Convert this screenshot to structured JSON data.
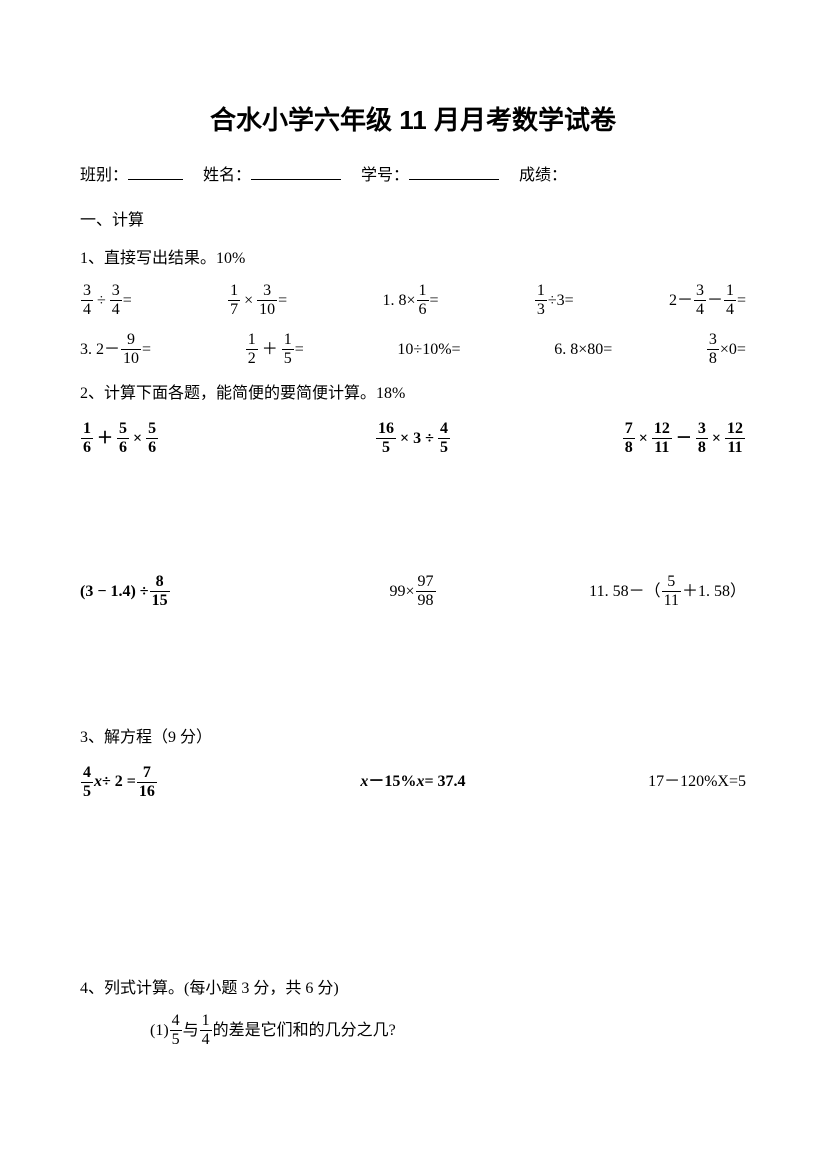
{
  "title": "合水小学六年级 11 月月考数学试卷",
  "info": {
    "class_label": "班别：",
    "name_label": "姓名：",
    "id_label": "学号：",
    "score_label": "成绩："
  },
  "sections": {
    "s1": "一、计算",
    "q1": "1、直接写出结果。10%",
    "q2": "2、计算下面各题，能简便的要简便计算。18%",
    "q3": "3、解方程（9 分）",
    "q4": "4、列式计算。(每小题 3 分，共 6 分)",
    "q4_1_prefix": "(1) ",
    "q4_1_mid": " 与 ",
    "q4_1_suffix": " 的差是它们和的几分之几?"
  },
  "row1": {
    "a_n1": "3",
    "a_d1": "4",
    "a_op": "÷",
    "a_n2": "3",
    "a_d2": "4",
    "a_eq": "=",
    "b_n1": "1",
    "b_d1": "7",
    "b_op": "×",
    "b_n2": "3",
    "b_d2": "10",
    "b_eq": "=",
    "c_pre": "1. 8×",
    "c_n": "1",
    "c_d": "6",
    "c_eq": "=",
    "d_n": "1",
    "d_d": "3",
    "d_op": "÷3=",
    "e_pre": "2－",
    "e_n1": "3",
    "e_d1": "4",
    "e_mid": "－",
    "e_n2": "1",
    "e_d2": "4",
    "e_eq": "="
  },
  "row2": {
    "a_pre": "3. 2－",
    "a_n": "9",
    "a_d": "10",
    "a_eq": "=",
    "b_n1": "1",
    "b_d1": "2",
    "b_op": "＋",
    "b_n2": "1",
    "b_d2": "5",
    "b_eq": "=",
    "c": "10÷10%=",
    "d": "6. 8×80=",
    "e_n": "3",
    "e_d": "8",
    "e_post": "×0="
  },
  "row3": {
    "a_n1": "1",
    "a_d1": "6",
    "a_op1": "＋",
    "a_n2": "5",
    "a_d2": "6",
    "a_op2": "×",
    "a_n3": "5",
    "a_d3": "6",
    "b_n1": "16",
    "b_d1": "5",
    "b_mid": "× 3 ÷",
    "b_n2": "4",
    "b_d2": "5",
    "c_n1": "7",
    "c_d1": "8",
    "c_op1": "×",
    "c_n2": "12",
    "c_d2": "11",
    "c_op2": "－",
    "c_n3": "3",
    "c_d3": "8",
    "c_op3": "×",
    "c_n4": "12",
    "c_d4": "11"
  },
  "row4": {
    "a_pre": "(3 − 1.4) ÷",
    "a_n": "8",
    "a_d": "15",
    "b_pre": "99×",
    "b_n": "97",
    "b_d": "98",
    "c_pre": "11. 58－（",
    "c_n": "5",
    "c_d": "11",
    "c_post": "＋1. 58）"
  },
  "row5": {
    "a_n1": "4",
    "a_d1": "5",
    "a_var": "x",
    "a_mid": " ÷ 2 = ",
    "a_n2": "7",
    "a_d2": "16",
    "b_var1": "x",
    "b_mid": "－15%",
    "b_var2": "x",
    "b_eq": " = 37.4",
    "c": "17－120%X=5"
  },
  "q4frac": {
    "f1n": "4",
    "f1d": "5",
    "f2n": "1",
    "f2d": "4"
  }
}
